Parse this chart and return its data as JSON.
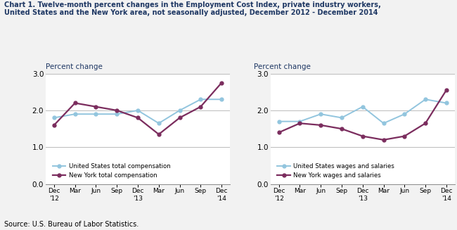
{
  "title_line1": "Chart 1. Twelve-month percent changes in the Employment Cost Index, private industry workers,",
  "title_line2": "United States and the New York area, not seasonally adjusted, December 2012 - December 2014",
  "ylabel": "Percent change",
  "source": "Source: U.S. Bureau of Labor Statistics.",
  "x_labels": [
    "Dec\n'12",
    "Mar",
    "Jun",
    "Sep",
    "Dec\n'13",
    "Mar",
    "Jun",
    "Sep",
    "Dec\n'14"
  ],
  "ylim": [
    0.0,
    3.0
  ],
  "yticks": [
    0.0,
    1.0,
    2.0,
    3.0
  ],
  "chart1": {
    "us_vals": [
      1.8,
      1.9,
      1.9,
      1.9,
      2.0,
      1.65,
      2.0,
      2.3,
      2.3
    ],
    "ny_vals": [
      1.6,
      2.2,
      2.1,
      2.0,
      1.8,
      1.35,
      1.8,
      2.1,
      2.75
    ],
    "us_label": "United States total compensation",
    "ny_label": "New York total compensation",
    "us_color": "#92c5de",
    "ny_color": "#7b2d5e"
  },
  "chart2": {
    "us_vals": [
      1.7,
      1.7,
      1.9,
      1.8,
      2.1,
      1.65,
      1.9,
      2.3,
      2.2
    ],
    "ny_vals": [
      1.4,
      1.65,
      1.6,
      1.5,
      1.3,
      1.2,
      1.3,
      1.65,
      2.55
    ],
    "us_label": "United States wages and salaries",
    "ny_label": "New York wages and salaries",
    "us_color": "#92c5de",
    "ny_color": "#7b2d5e"
  },
  "grid_color": "#bbbbbb",
  "bg_color": "#f2f2f2",
  "plot_bg": "#ffffff",
  "title_color": "#1f3864",
  "ylabel_color": "#1f3864"
}
